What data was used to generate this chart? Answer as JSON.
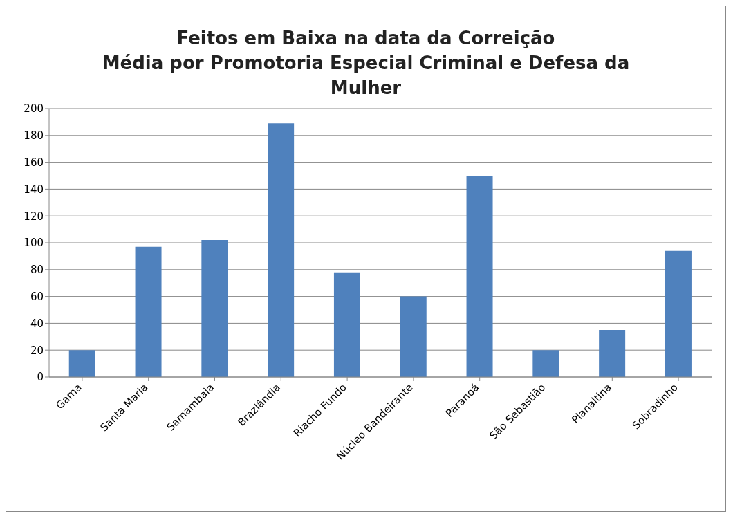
{
  "chart_data": {
    "type": "bar",
    "title": "Feitos em Baixa na data da Correição\nMédia por Promotoria Especial Criminal e Defesa da Mulher",
    "categories": [
      "Gama",
      "Santa Maria",
      "Samambaia",
      "Brazlândia",
      "Riacho Fundo",
      "Núcleo Bandeirante",
      "Paranoá",
      "São Sebastião",
      "Planaltina",
      "Sobradinho"
    ],
    "values": [
      20,
      97,
      102,
      189,
      78,
      60,
      150,
      20,
      35,
      94
    ],
    "color": "#4f81bd",
    "ylim": [
      0,
      200
    ],
    "yticks": [
      0,
      20,
      40,
      60,
      80,
      100,
      120,
      140,
      160,
      180,
      200
    ],
    "grid": "y"
  }
}
